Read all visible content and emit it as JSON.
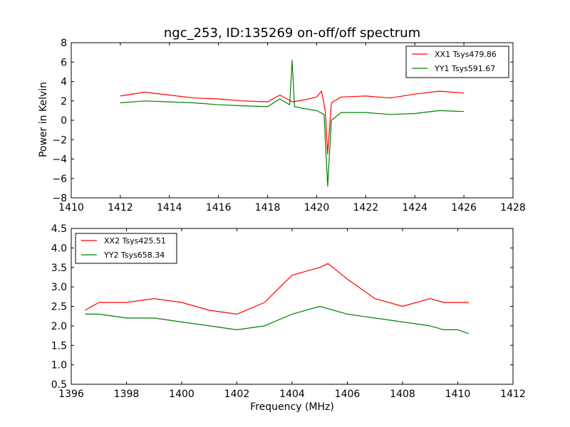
{
  "chart_data": [
    {
      "type": "line",
      "title": "ngc_253, ID:135269 on-off/off spectrum",
      "xlabel": "",
      "ylabel": "Power in Kelvin",
      "xlim": [
        1410,
        1428
      ],
      "ylim": [
        -8,
        8
      ],
      "xticks": [
        1410,
        1412,
        1414,
        1416,
        1418,
        1420,
        1422,
        1424,
        1426,
        1428
      ],
      "yticks": [
        -8,
        -6,
        -4,
        -2,
        0,
        2,
        4,
        6,
        8
      ],
      "ytick_labels": [
        "−8",
        "−6",
        "−4",
        "−2",
        "0",
        "2",
        "4",
        "6",
        "8"
      ],
      "grid": false,
      "legend_position": "top-right",
      "series": [
        {
          "name": "XX1 Tsys479.86",
          "color": "#ff0000",
          "x": [
            1412.0,
            1413.0,
            1414.0,
            1415.0,
            1416.0,
            1417.0,
            1418.0,
            1418.5,
            1418.8,
            1419.0,
            1419.5,
            1420.0,
            1420.2,
            1420.35,
            1420.45,
            1420.6,
            1421.0,
            1422.0,
            1423.0,
            1424.0,
            1425.0,
            1426.0
          ],
          "y": [
            2.5,
            2.9,
            2.6,
            2.3,
            2.2,
            2.0,
            1.9,
            2.6,
            2.2,
            1.9,
            2.1,
            2.4,
            3.0,
            1.0,
            -3.5,
            1.8,
            2.4,
            2.5,
            2.3,
            2.7,
            3.0,
            2.8
          ]
        },
        {
          "name": "YY1 Tsys591.67",
          "color": "#008000",
          "x": [
            1412.0,
            1413.0,
            1414.0,
            1415.0,
            1416.0,
            1417.0,
            1418.0,
            1418.5,
            1418.9,
            1419.0,
            1419.1,
            1419.5,
            1420.0,
            1420.3,
            1420.45,
            1420.6,
            1421.0,
            1422.0,
            1423.0,
            1424.0,
            1425.0,
            1426.0
          ],
          "y": [
            1.8,
            2.0,
            1.9,
            1.8,
            1.6,
            1.5,
            1.4,
            2.2,
            1.6,
            6.2,
            1.4,
            1.2,
            1.0,
            0.6,
            -6.8,
            0.0,
            0.8,
            0.8,
            0.6,
            0.7,
            1.0,
            0.9
          ]
        }
      ]
    },
    {
      "type": "line",
      "title": "",
      "xlabel": "Frequency (MHz)",
      "ylabel": "",
      "xlim": [
        1396,
        1412
      ],
      "ylim": [
        0.5,
        4.5
      ],
      "xticks": [
        1396,
        1398,
        1400,
        1402,
        1404,
        1406,
        1408,
        1410,
        1412
      ],
      "yticks": [
        0.5,
        1.0,
        1.5,
        2.0,
        2.5,
        3.0,
        3.5,
        4.0,
        4.5
      ],
      "ytick_labels": [
        "0.5",
        "1.0",
        "1.5",
        "2.0",
        "2.5",
        "3.0",
        "3.5",
        "4.0",
        "4.5"
      ],
      "grid": false,
      "legend_position": "top-left",
      "series": [
        {
          "name": "XX2 Tsys425.51",
          "color": "#ff0000",
          "x": [
            1396.5,
            1397.0,
            1398.0,
            1399.0,
            1400.0,
            1401.0,
            1402.0,
            1403.0,
            1404.0,
            1404.5,
            1405.0,
            1405.3,
            1406.0,
            1407.0,
            1408.0,
            1409.0,
            1409.5,
            1410.0,
            1410.4
          ],
          "y": [
            2.4,
            2.6,
            2.6,
            2.7,
            2.6,
            2.4,
            2.3,
            2.6,
            3.3,
            3.4,
            3.5,
            3.6,
            3.2,
            2.7,
            2.5,
            2.7,
            2.6,
            2.6,
            2.6
          ]
        },
        {
          "name": "YY2 Tsys658.34",
          "color": "#008000",
          "x": [
            1396.5,
            1397.0,
            1398.0,
            1399.0,
            1400.0,
            1401.0,
            1402.0,
            1403.0,
            1404.0,
            1405.0,
            1406.0,
            1407.0,
            1408.0,
            1409.0,
            1409.5,
            1410.0,
            1410.4
          ],
          "y": [
            2.3,
            2.3,
            2.2,
            2.2,
            2.1,
            2.0,
            1.9,
            2.0,
            2.3,
            2.5,
            2.3,
            2.2,
            2.1,
            2.0,
            1.9,
            1.9,
            1.8
          ]
        }
      ]
    }
  ]
}
